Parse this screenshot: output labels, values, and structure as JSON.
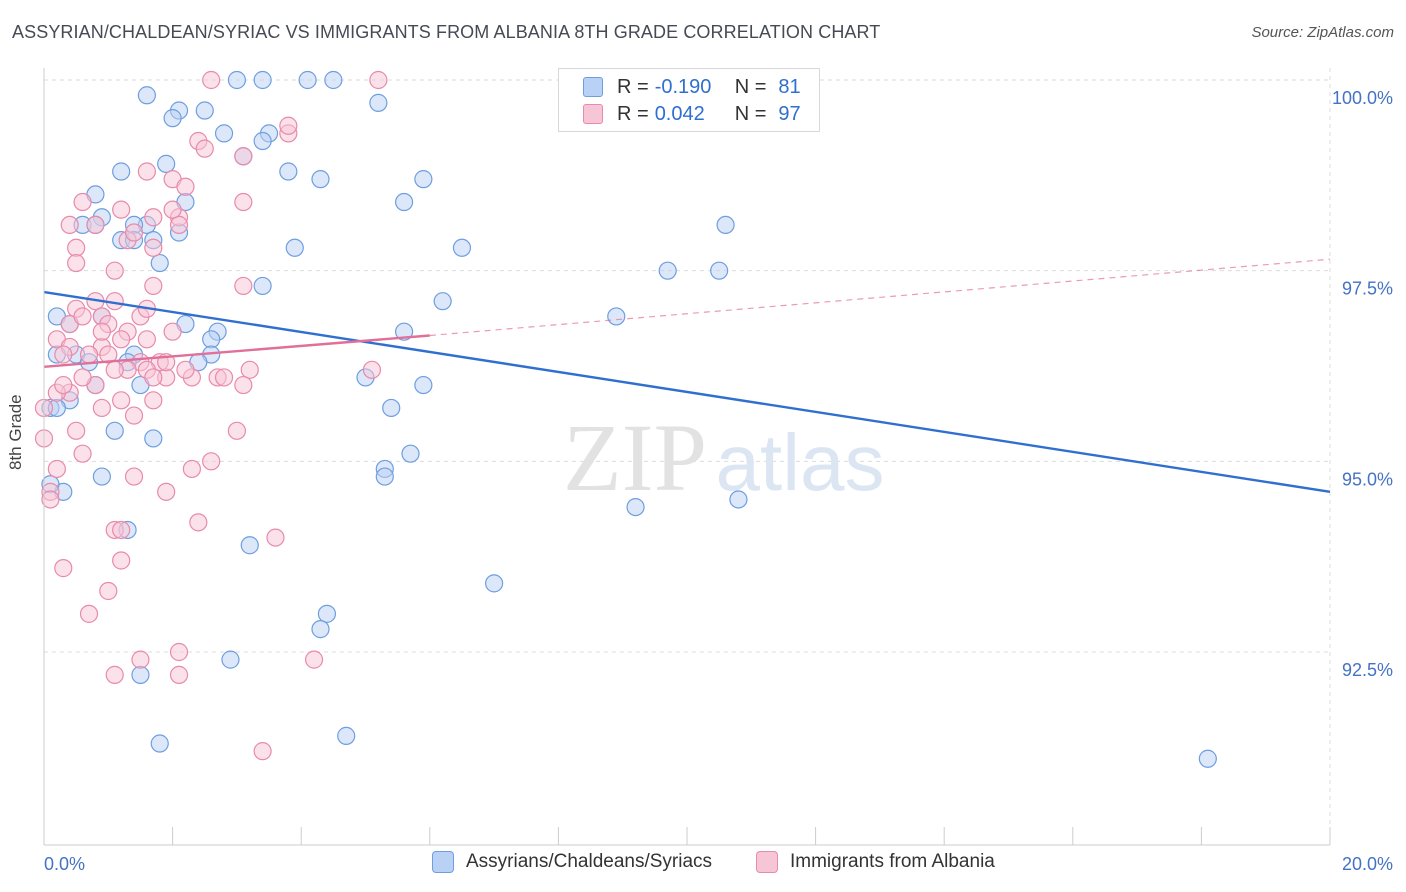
{
  "title": "ASSYRIAN/CHALDEAN/SYRIAC VS IMMIGRANTS FROM ALBANIA 8TH GRADE CORRELATION CHART",
  "source": "Source: ZipAtlas.com",
  "watermark": {
    "zip": "ZIP",
    "atlas": "atlas"
  },
  "legend": {
    "rows": [
      {
        "r_label": "R =",
        "r_value": "-0.190",
        "n_label": "N =",
        "n_value": "81",
        "fill": "#b9d1f4",
        "stroke": "#6e9ee0"
      },
      {
        "r_label": "R =",
        "r_value": "0.042",
        "n_label": "N =",
        "n_value": "97",
        "fill": "#f7c6d6",
        "stroke": "#e88aab"
      }
    ]
  },
  "bottom_legend": [
    {
      "label": "Assyrians/Chaldeans/Syriacs",
      "fill": "#b9d1f4",
      "stroke": "#6e9ee0"
    },
    {
      "label": "Immigrants from Albania",
      "fill": "#f7c6d6",
      "stroke": "#e88aab"
    }
  ],
  "chart_data": {
    "type": "scatter",
    "title": "ASSYRIAN/CHALDEAN/SYRIAC VS IMMIGRANTS FROM ALBANIA 8TH GRADE CORRELATION CHART",
    "xlabel": "",
    "ylabel": "8th Grade",
    "xlim": [
      0,
      20
    ],
    "ylim": [
      90.3,
      100.4
    ],
    "x_tick_labels": [
      {
        "value": 0,
        "label": "0.0%"
      },
      {
        "value": 20,
        "label": "20.0%"
      }
    ],
    "y_ticks": [
      {
        "value": 100.0,
        "label": "100.0%"
      },
      {
        "value": 97.5,
        "label": "97.5%"
      },
      {
        "value": 95.0,
        "label": "95.0%"
      },
      {
        "value": 92.5,
        "label": "92.5%"
      }
    ],
    "grid": true,
    "colors": {
      "blue": "#6e9ee0",
      "blue_fill": "#b9d1f4",
      "blue_line": "#2f6fcf",
      "pink": "#e88aab",
      "pink_fill": "#f7c6d6",
      "pink_line": "#e07099"
    },
    "series": [
      {
        "name": "Assyrians/Chaldeans/Syriacs",
        "color": "blue",
        "trend": {
          "x0": 0,
          "y0": 97.22,
          "x1": 20,
          "y1": 94.6,
          "dashed": false
        },
        "points": [
          [
            1.6,
            99.8
          ],
          [
            3.0,
            100.0
          ],
          [
            3.4,
            100.0
          ],
          [
            4.1,
            100.0
          ],
          [
            4.5,
            100.0
          ],
          [
            5.2,
            99.7
          ],
          [
            2.1,
            99.6
          ],
          [
            2.5,
            99.6
          ],
          [
            2.0,
            99.5
          ],
          [
            2.8,
            99.3
          ],
          [
            3.5,
            99.3
          ],
          [
            3.4,
            99.2
          ],
          [
            3.1,
            99.0
          ],
          [
            1.2,
            98.8
          ],
          [
            1.9,
            98.9
          ],
          [
            3.8,
            98.8
          ],
          [
            4.3,
            98.7
          ],
          [
            5.9,
            98.7
          ],
          [
            0.8,
            98.5
          ],
          [
            2.2,
            98.4
          ],
          [
            5.6,
            98.4
          ],
          [
            0.9,
            98.2
          ],
          [
            1.6,
            98.1
          ],
          [
            1.4,
            98.1
          ],
          [
            0.6,
            98.1
          ],
          [
            0.8,
            98.1
          ],
          [
            2.1,
            98.0
          ],
          [
            1.2,
            97.9
          ],
          [
            1.4,
            97.9
          ],
          [
            1.7,
            97.9
          ],
          [
            6.5,
            97.8
          ],
          [
            3.9,
            97.8
          ],
          [
            1.8,
            97.6
          ],
          [
            9.7,
            97.5
          ],
          [
            10.5,
            97.5
          ],
          [
            3.4,
            97.3
          ],
          [
            6.2,
            97.1
          ],
          [
            8.9,
            96.9
          ],
          [
            0.2,
            96.9
          ],
          [
            0.9,
            96.9
          ],
          [
            2.2,
            96.8
          ],
          [
            2.7,
            96.7
          ],
          [
            5.6,
            96.7
          ],
          [
            0.4,
            96.8
          ],
          [
            2.6,
            96.6
          ],
          [
            0.2,
            96.4
          ],
          [
            0.5,
            96.4
          ],
          [
            1.4,
            96.4
          ],
          [
            2.6,
            96.4
          ],
          [
            0.7,
            96.3
          ],
          [
            1.3,
            96.3
          ],
          [
            2.4,
            96.3
          ],
          [
            5.0,
            96.1
          ],
          [
            1.5,
            96.0
          ],
          [
            0.8,
            96.0
          ],
          [
            5.9,
            96.0
          ],
          [
            0.4,
            95.8
          ],
          [
            5.4,
            95.7
          ],
          [
            0.1,
            95.7
          ],
          [
            1.1,
            95.4
          ],
          [
            1.7,
            95.3
          ],
          [
            5.7,
            95.1
          ],
          [
            5.3,
            94.9
          ],
          [
            0.9,
            94.8
          ],
          [
            5.3,
            94.8
          ],
          [
            0.3,
            94.6
          ],
          [
            10.8,
            94.5
          ],
          [
            9.2,
            94.4
          ],
          [
            1.3,
            94.1
          ],
          [
            3.2,
            93.9
          ],
          [
            7.0,
            93.4
          ],
          [
            4.4,
            93.0
          ],
          [
            4.3,
            92.8
          ],
          [
            2.9,
            92.4
          ],
          [
            1.5,
            92.2
          ],
          [
            1.8,
            91.3
          ],
          [
            4.7,
            91.4
          ],
          [
            18.1,
            91.1
          ],
          [
            10.6,
            98.1
          ],
          [
            0.2,
            95.7
          ],
          [
            0.1,
            94.7
          ]
        ]
      },
      {
        "name": "Immigrants from Albania",
        "color": "pink",
        "trend": {
          "x0": 0,
          "y0": 96.24,
          "x1": 6.0,
          "y1": 96.65,
          "dashed": false,
          "extension": {
            "x0": 6.0,
            "y0": 96.65,
            "x1": 20,
            "y1": 97.65
          }
        },
        "points": [
          [
            2.6,
            100.0
          ],
          [
            5.2,
            100.0
          ],
          [
            3.8,
            99.3
          ],
          [
            2.4,
            99.2
          ],
          [
            2.5,
            99.1
          ],
          [
            3.1,
            99.0
          ],
          [
            2.0,
            98.7
          ],
          [
            2.2,
            98.6
          ],
          [
            1.6,
            98.8
          ],
          [
            0.6,
            98.4
          ],
          [
            1.2,
            98.3
          ],
          [
            3.1,
            98.4
          ],
          [
            1.7,
            98.2
          ],
          [
            2.1,
            98.2
          ],
          [
            0.8,
            98.1
          ],
          [
            0.4,
            98.1
          ],
          [
            1.3,
            97.9
          ],
          [
            1.4,
            98.0
          ],
          [
            1.7,
            97.8
          ],
          [
            0.5,
            97.8
          ],
          [
            2.1,
            98.1
          ],
          [
            1.1,
            97.5
          ],
          [
            0.5,
            97.6
          ],
          [
            3.1,
            97.3
          ],
          [
            1.7,
            97.3
          ],
          [
            1.1,
            97.1
          ],
          [
            0.8,
            97.1
          ],
          [
            0.5,
            97.0
          ],
          [
            0.9,
            96.9
          ],
          [
            1.5,
            96.9
          ],
          [
            0.4,
            96.8
          ],
          [
            1.0,
            96.8
          ],
          [
            1.3,
            96.7
          ],
          [
            2.0,
            96.7
          ],
          [
            0.2,
            96.6
          ],
          [
            1.2,
            96.6
          ],
          [
            1.6,
            96.6
          ],
          [
            0.4,
            96.5
          ],
          [
            0.9,
            96.5
          ],
          [
            0.3,
            96.4
          ],
          [
            1.0,
            96.4
          ],
          [
            0.7,
            96.4
          ],
          [
            1.5,
            96.3
          ],
          [
            1.8,
            96.3
          ],
          [
            1.3,
            96.2
          ],
          [
            1.9,
            96.1
          ],
          [
            2.3,
            96.1
          ],
          [
            2.7,
            96.1
          ],
          [
            3.2,
            96.2
          ],
          [
            3.1,
            96.0
          ],
          [
            0.4,
            95.9
          ],
          [
            0.8,
            96.0
          ],
          [
            0.2,
            95.9
          ],
          [
            1.2,
            95.8
          ],
          [
            1.7,
            95.8
          ],
          [
            0.9,
            95.7
          ],
          [
            1.4,
            95.6
          ],
          [
            0.6,
            96.1
          ],
          [
            3.0,
            95.4
          ],
          [
            0.6,
            95.1
          ],
          [
            2.6,
            95.0
          ],
          [
            2.3,
            94.9
          ],
          [
            0.2,
            94.9
          ],
          [
            1.4,
            94.8
          ],
          [
            0.1,
            94.6
          ],
          [
            1.9,
            94.6
          ],
          [
            2.4,
            94.2
          ],
          [
            1.1,
            94.1
          ],
          [
            1.2,
            94.1
          ],
          [
            3.6,
            94.0
          ],
          [
            1.2,
            93.7
          ],
          [
            0.3,
            93.6
          ],
          [
            1.0,
            93.3
          ],
          [
            0.7,
            93.0
          ],
          [
            2.1,
            92.5
          ],
          [
            1.5,
            92.4
          ],
          [
            4.2,
            92.4
          ],
          [
            1.1,
            92.2
          ],
          [
            2.1,
            92.2
          ],
          [
            3.4,
            91.2
          ],
          [
            0.1,
            94.5
          ],
          [
            0.0,
            95.3
          ],
          [
            0.0,
            95.7
          ],
          [
            0.3,
            96.0
          ],
          [
            1.9,
            96.3
          ],
          [
            2.2,
            96.2
          ],
          [
            1.1,
            96.2
          ],
          [
            0.6,
            96.9
          ],
          [
            1.6,
            97.0
          ],
          [
            3.8,
            99.4
          ],
          [
            5.1,
            96.2
          ],
          [
            0.9,
            96.7
          ],
          [
            2.0,
            98.3
          ],
          [
            1.6,
            96.2
          ],
          [
            1.7,
            96.1
          ],
          [
            0.5,
            95.4
          ],
          [
            2.8,
            96.1
          ]
        ]
      }
    ]
  }
}
